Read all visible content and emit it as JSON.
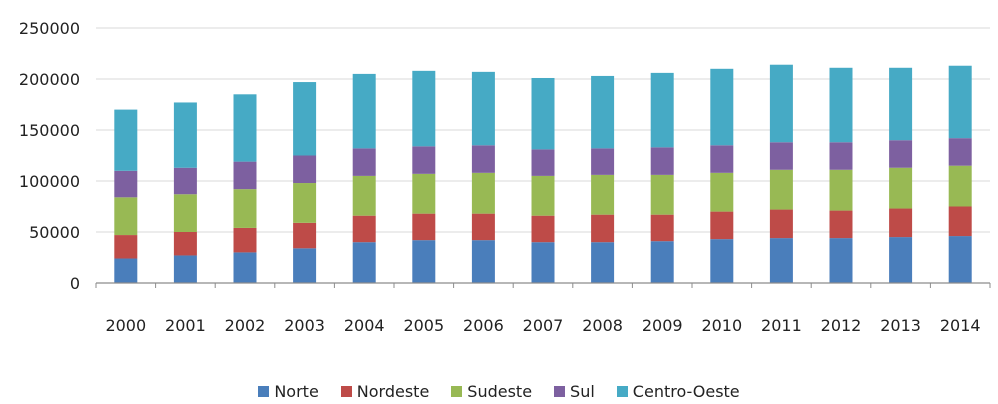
{
  "chart_data": {
    "type": "bar",
    "stacked": true,
    "categories": [
      "2000",
      "2001",
      "2002",
      "2003",
      "2004",
      "2005",
      "2006",
      "2007",
      "2008",
      "2009",
      "2010",
      "2011",
      "2012",
      "2013",
      "2014"
    ],
    "series": [
      {
        "name": "Norte",
        "color": "#4a7ebb",
        "values": [
          24000,
          27000,
          30000,
          34000,
          40000,
          42000,
          42000,
          40000,
          40000,
          41000,
          43000,
          44000,
          44000,
          45000,
          46000
        ]
      },
      {
        "name": "Nordeste",
        "color": "#be4b48",
        "values": [
          23000,
          23000,
          24000,
          25000,
          26000,
          26000,
          26000,
          26000,
          27000,
          26000,
          27000,
          28000,
          27000,
          28000,
          29000
        ]
      },
      {
        "name": "Sudeste",
        "color": "#98b954",
        "values": [
          37000,
          37000,
          38000,
          39000,
          39000,
          39000,
          40000,
          39000,
          39000,
          39000,
          38000,
          39000,
          40000,
          40000,
          40000
        ]
      },
      {
        "name": "Sul",
        "color": "#7d60a0",
        "values": [
          26000,
          26000,
          27000,
          27000,
          27000,
          27000,
          27000,
          26000,
          26000,
          27000,
          27000,
          27000,
          27000,
          27000,
          27000
        ]
      },
      {
        "name": "Centro-Oeste",
        "color": "#46aac5",
        "values": [
          60000,
          64000,
          66000,
          72000,
          73000,
          74000,
          72000,
          70000,
          71000,
          73000,
          75000,
          76000,
          73000,
          71000,
          71000
        ]
      }
    ],
    "ylim": [
      0,
      250000
    ],
    "yticks": [
      "0",
      "50000",
      "100000",
      "150000",
      "200000",
      "250000"
    ],
    "grid": true,
    "legend_position": "bottom",
    "title": "",
    "xlabel": "",
    "ylabel": ""
  },
  "colors": {
    "grid": "#d9d9d9",
    "axis": "#8c8c8c"
  }
}
